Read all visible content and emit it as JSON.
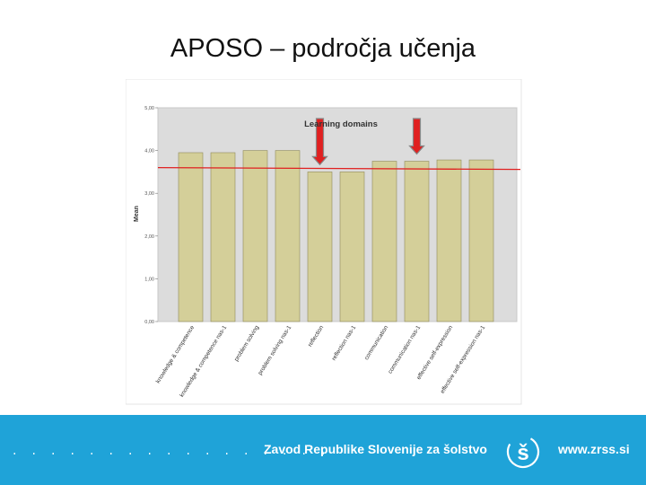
{
  "slide": {
    "title": "APOSO – področja učenja"
  },
  "footer": {
    "dots": ". . . . . . . . . . . . . . . . .",
    "organization": "Zavod Republike Slovenije za šolstvo",
    "url": "www.zrss.si",
    "logo_icon": "zrss-s-logo-icon"
  },
  "colors": {
    "bar": "#d4cf99",
    "plot_bg": "#dcdcdc",
    "reference_line": "#e02020",
    "arrow": "#e02020",
    "footer": "#1fa3d8"
  },
  "chart_data": {
    "type": "bar",
    "title": "Learning domains",
    "ylabel": "Mean",
    "xlabel": "",
    "ylim": [
      0,
      5
    ],
    "yticks": [
      "0,00",
      "1,00",
      "2,00",
      "3,00",
      "4,00",
      "5,00"
    ],
    "categories": [
      "knowledge & competence",
      "knowledge & competence nas-1",
      "problem solving",
      "problem solving nas-1",
      "reflection",
      "reflection nas-1",
      "communication",
      "communication nas-1",
      "effective self-expression",
      "effective self-expression nas-1"
    ],
    "values": [
      3.95,
      3.95,
      4.0,
      4.0,
      3.5,
      3.5,
      3.75,
      3.75,
      3.78,
      3.78
    ],
    "reference_line": 3.6,
    "highlighted_categories": [
      "reflection",
      "communication nas-1"
    ],
    "grid": false,
    "legend": "none"
  }
}
